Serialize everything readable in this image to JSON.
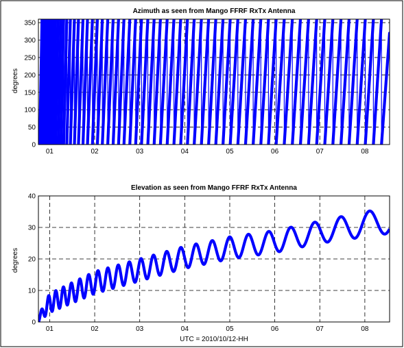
{
  "chart_data": [
    {
      "type": "scatter",
      "title": "Azimuth as seen from Mango FFRF RxTx Antenna",
      "xlabel": "",
      "ylabel": "degrees",
      "xlim": [
        0.75,
        8.55
      ],
      "ylim": [
        0,
        360
      ],
      "xticks": [
        "01",
        "02",
        "03",
        "04",
        "05",
        "06",
        "07",
        "08"
      ],
      "yticks": [
        "0",
        "50",
        "100",
        "150",
        "200",
        "250",
        "300",
        "350"
      ],
      "grid": true,
      "color": "#0000ff",
      "series": [
        {
          "description": "Azimuth wraps 0 to 360 degrees; wrap times (hours UTC) read from the plot",
          "wrap_times": [
            0.78,
            0.83,
            0.88,
            0.93,
            0.98,
            1.03,
            1.08,
            1.13,
            1.19,
            1.25,
            1.31,
            1.38,
            1.46,
            1.55,
            1.64,
            1.74,
            1.84,
            1.95,
            2.06,
            2.17,
            2.29,
            2.41,
            2.53,
            2.65,
            2.78,
            2.91,
            3.04,
            3.18,
            3.32,
            3.46,
            3.61,
            3.76,
            3.91,
            4.06,
            4.21,
            4.37,
            4.53,
            4.69,
            4.85,
            5.01,
            5.18,
            5.35,
            5.52,
            5.69,
            5.86,
            6.03,
            6.21,
            6.39,
            6.57,
            6.75,
            6.93,
            7.11,
            7.29,
            7.47,
            7.65,
            7.83,
            8.01,
            8.19,
            8.37
          ],
          "last_value": 320
        }
      ]
    },
    {
      "type": "line",
      "title": "Elevation as seen from Mango FFRF RxTx Antenna",
      "xlabel": "UTC = 2010/10/12-HH",
      "ylabel": "degrees",
      "xlim": [
        0.75,
        8.55
      ],
      "ylim": [
        0,
        40
      ],
      "xticks": [
        "01",
        "02",
        "03",
        "04",
        "05",
        "06",
        "07",
        "08"
      ],
      "yticks": [
        "0",
        "10",
        "20",
        "30",
        "40"
      ],
      "grid": true,
      "color": "#0000ff",
      "series": [
        {
          "description": "Oscillating elevation; lower and upper envelope values in degrees at each hour",
          "x": [
            0.75,
            1,
            2,
            3,
            4,
            5,
            6,
            7,
            8,
            8.5
          ],
          "lower": [
            0,
            3,
            9,
            13,
            17,
            20,
            22,
            25,
            27,
            28
          ],
          "upper": [
            2,
            9,
            16,
            20,
            24,
            27,
            29,
            32,
            35,
            36
          ]
        }
      ]
    }
  ]
}
